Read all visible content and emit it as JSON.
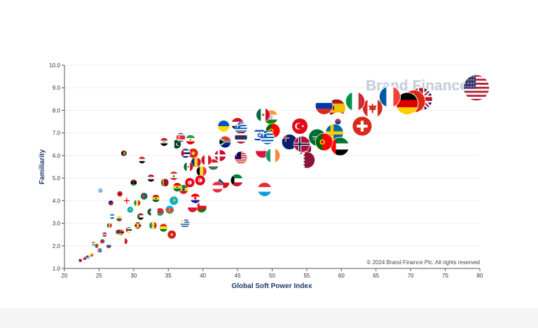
{
  "chart_data": {
    "type": "scatter",
    "title": "",
    "xlabel": "Global Soft Power Index",
    "ylabel": "Familiarity",
    "xlim": [
      20,
      80
    ],
    "ylim": [
      1.0,
      10.0
    ],
    "x_ticks": [
      "20",
      "25",
      "30",
      "35",
      "40",
      "45",
      "50",
      "55",
      "60",
      "65",
      "70",
      "75",
      "80"
    ],
    "y_ticks": [
      "1.0",
      "2.0",
      "3.0",
      "4.0",
      "5.0",
      "6.0",
      "7.0",
      "8.0",
      "9.0",
      "10.0"
    ],
    "grid": "horizontal",
    "watermark": "Brand Finance",
    "copyright": "© 2024 Brand Finance Plc. All rights reserved",
    "colors": {
      "axis": "#555555",
      "grid": "#eeeeee",
      "label": "#1f3a68",
      "watermark": "#c3ccd8"
    },
    "points": [
      {
        "x": 79.5,
        "y": 9.0,
        "flag": "usa"
      },
      {
        "x": 71.5,
        "y": 8.5,
        "flag": "uk"
      },
      {
        "x": 70.5,
        "y": 8.4,
        "flag": "china"
      },
      {
        "x": 69.5,
        "y": 8.3,
        "flag": "germany"
      },
      {
        "x": 67.0,
        "y": 8.6,
        "flag": "france"
      },
      {
        "x": 64.5,
        "y": 8.1,
        "flag": "canada"
      },
      {
        "x": 62.0,
        "y": 8.4,
        "flag": "italy"
      },
      {
        "x": 63.0,
        "y": 7.3,
        "flag": "switzerland"
      },
      {
        "x": 59.3,
        "y": 8.1,
        "flag": "spain"
      },
      {
        "x": 57.5,
        "y": 8.2,
        "flag": "russia"
      },
      {
        "x": 59.5,
        "y": 7.5,
        "flag": "korea"
      },
      {
        "x": 59.0,
        "y": 7.0,
        "flag": "sweden"
      },
      {
        "x": 59.8,
        "y": 6.4,
        "flag": "uae"
      },
      {
        "x": 56.5,
        "y": 6.8,
        "flag": "saudi"
      },
      {
        "x": 57.5,
        "y": 6.6,
        "flag": "portugal"
      },
      {
        "x": 54.0,
        "y": 7.3,
        "flag": "turkey"
      },
      {
        "x": 54.5,
        "y": 6.3,
        "flag": "qatar"
      },
      {
        "x": 55.0,
        "y": 5.8,
        "flag": "qatar"
      },
      {
        "x": 52.5,
        "y": 6.6,
        "flag": "nz"
      },
      {
        "x": 54.3,
        "y": 6.5,
        "flag": "norway"
      },
      {
        "x": 49.8,
        "y": 7.7,
        "flag": "india"
      },
      {
        "x": 48.7,
        "y": 7.8,
        "flag": "mexico"
      },
      {
        "x": 50.1,
        "y": 7.1,
        "flag": "portugal"
      },
      {
        "x": 48.2,
        "y": 6.9,
        "flag": "israel"
      },
      {
        "x": 49.3,
        "y": 6.8,
        "flag": "greece"
      },
      {
        "x": 48.6,
        "y": 6.2,
        "flag": "poland"
      },
      {
        "x": 50.1,
        "y": 6.0,
        "flag": "ireland"
      },
      {
        "x": 48.9,
        "y": 4.5,
        "flag": "luxembourg"
      },
      {
        "x": 43.0,
        "y": 7.3,
        "flag": "ukraine"
      },
      {
        "x": 45.0,
        "y": 7.4,
        "flag": "egypt"
      },
      {
        "x": 45.5,
        "y": 7.2,
        "flag": "greece"
      },
      {
        "x": 43.2,
        "y": 6.6,
        "flag": "southafrica"
      },
      {
        "x": 45.5,
        "y": 6.8,
        "flag": "thailand"
      },
      {
        "x": 45.5,
        "y": 5.9,
        "flag": "malaysia"
      },
      {
        "x": 42.5,
        "y": 6.0,
        "flag": "denmark"
      },
      {
        "x": 41.5,
        "y": 5.6,
        "flag": "hungary"
      },
      {
        "x": 44.9,
        "y": 4.9,
        "flag": "kuwait"
      },
      {
        "x": 43.0,
        "y": 4.8,
        "flag": "czech"
      },
      {
        "x": 42.1,
        "y": 4.6,
        "flag": "austria"
      },
      {
        "x": 38.2,
        "y": 6.7,
        "flag": "iran"
      },
      {
        "x": 38.6,
        "y": 6.1,
        "flag": "vietnam"
      },
      {
        "x": 40.5,
        "y": 5.8,
        "flag": "peru"
      },
      {
        "x": 36.2,
        "y": 6.5,
        "flag": "pakistan"
      },
      {
        "x": 36.8,
        "y": 6.8,
        "flag": "nkorea"
      },
      {
        "x": 37.5,
        "y": 6.1,
        "flag": "cuba"
      },
      {
        "x": 34.4,
        "y": 6.6,
        "flag": "iraq"
      },
      {
        "x": 39.0,
        "y": 5.7,
        "flag": "romania"
      },
      {
        "x": 37.9,
        "y": 5.5,
        "flag": "mexico"
      },
      {
        "x": 39.8,
        "y": 5.3,
        "flag": "belgium"
      },
      {
        "x": 38.1,
        "y": 4.8,
        "flag": "tunisia"
      },
      {
        "x": 39.6,
        "y": 4.9,
        "flag": "tunisia"
      },
      {
        "x": 37.2,
        "y": 4.5,
        "flag": "ethiopia"
      },
      {
        "x": 38.9,
        "y": 4.1,
        "flag": "croatia"
      },
      {
        "x": 39.8,
        "y": 3.7,
        "flag": "oman"
      },
      {
        "x": 38.5,
        "y": 3.7,
        "flag": "poland"
      },
      {
        "x": 35.8,
        "y": 5.1,
        "flag": "lebanon"
      },
      {
        "x": 36.3,
        "y": 4.6,
        "flag": "ghana"
      },
      {
        "x": 34.5,
        "y": 4.8,
        "flag": "srilanka"
      },
      {
        "x": 35.8,
        "y": 4.0,
        "flag": "kazakhstan"
      },
      {
        "x": 35.2,
        "y": 3.6,
        "flag": "azerbaijan"
      },
      {
        "x": 33.8,
        "y": 3.5,
        "flag": "belarus"
      },
      {
        "x": 31.2,
        "y": 5.8,
        "flag": "syria"
      },
      {
        "x": 28.6,
        "y": 6.1,
        "flag": "afghanistan"
      },
      {
        "x": 30.0,
        "y": 4.8,
        "flag": "libya"
      },
      {
        "x": 32.5,
        "y": 5.0,
        "flag": "syria"
      },
      {
        "x": 31.5,
        "y": 4.2,
        "flag": "bangladesh"
      },
      {
        "x": 33.2,
        "y": 4.1,
        "flag": "ghana"
      },
      {
        "x": 30.5,
        "y": 3.9,
        "flag": "senegal"
      },
      {
        "x": 32.5,
        "y": 3.5,
        "flag": "algeria"
      },
      {
        "x": 29.5,
        "y": 3.6,
        "flag": "kazakhstan"
      },
      {
        "x": 31.0,
        "y": 3.3,
        "flag": "sudan"
      },
      {
        "x": 30.6,
        "y": 2.9,
        "flag": "uganda"
      },
      {
        "x": 32.8,
        "y": 2.9,
        "flag": "senegal"
      },
      {
        "x": 29.3,
        "y": 2.7,
        "flag": "mozambique"
      },
      {
        "x": 28.2,
        "y": 2.6,
        "flag": "zimbabwe"
      },
      {
        "x": 34.3,
        "y": 2.8,
        "flag": "bolivia"
      },
      {
        "x": 27.9,
        "y": 3.2,
        "flag": "ecuador"
      },
      {
        "x": 29.0,
        "y": 4.0,
        "flag": "georgia"
      },
      {
        "x": 28.0,
        "y": 4.3,
        "flag": "albania"
      },
      {
        "x": 26.9,
        "y": 3.3,
        "flag": "honduras"
      },
      {
        "x": 26.5,
        "y": 2.9,
        "flag": "moldova"
      },
      {
        "x": 27.8,
        "y": 2.6,
        "flag": "armenia"
      },
      {
        "x": 25.8,
        "y": 2.5,
        "flag": "latvia"
      },
      {
        "x": 25.5,
        "y": 2.2,
        "flag": "eritrea"
      },
      {
        "x": 26.4,
        "y": 2.0,
        "flag": "slovenia"
      },
      {
        "x": 24.7,
        "y": 2.0,
        "flag": "cameroon"
      },
      {
        "x": 24.2,
        "y": 2.1,
        "flag": "niger"
      },
      {
        "x": 28.7,
        "y": 2.2,
        "flag": "malta"
      },
      {
        "x": 25.1,
        "y": 1.8,
        "flag": "iceland"
      },
      {
        "x": 23.9,
        "y": 1.6,
        "flag": "bhutan"
      },
      {
        "x": 23.4,
        "y": 1.5,
        "flag": "fiji"
      },
      {
        "x": 22.9,
        "y": 1.45,
        "flag": "tonga"
      },
      {
        "x": 22.3,
        "y": 1.35,
        "flag": "samoa"
      },
      {
        "x": 25.2,
        "y": 4.45,
        "flag": "micronesia"
      },
      {
        "x": 26.7,
        "y": 3.9,
        "flag": "haiti"
      },
      {
        "x": 35.5,
        "y": 2.5,
        "flag": "northmacedonia"
      },
      {
        "x": 37.4,
        "y": 3.0,
        "flag": "uruguay"
      }
    ]
  }
}
